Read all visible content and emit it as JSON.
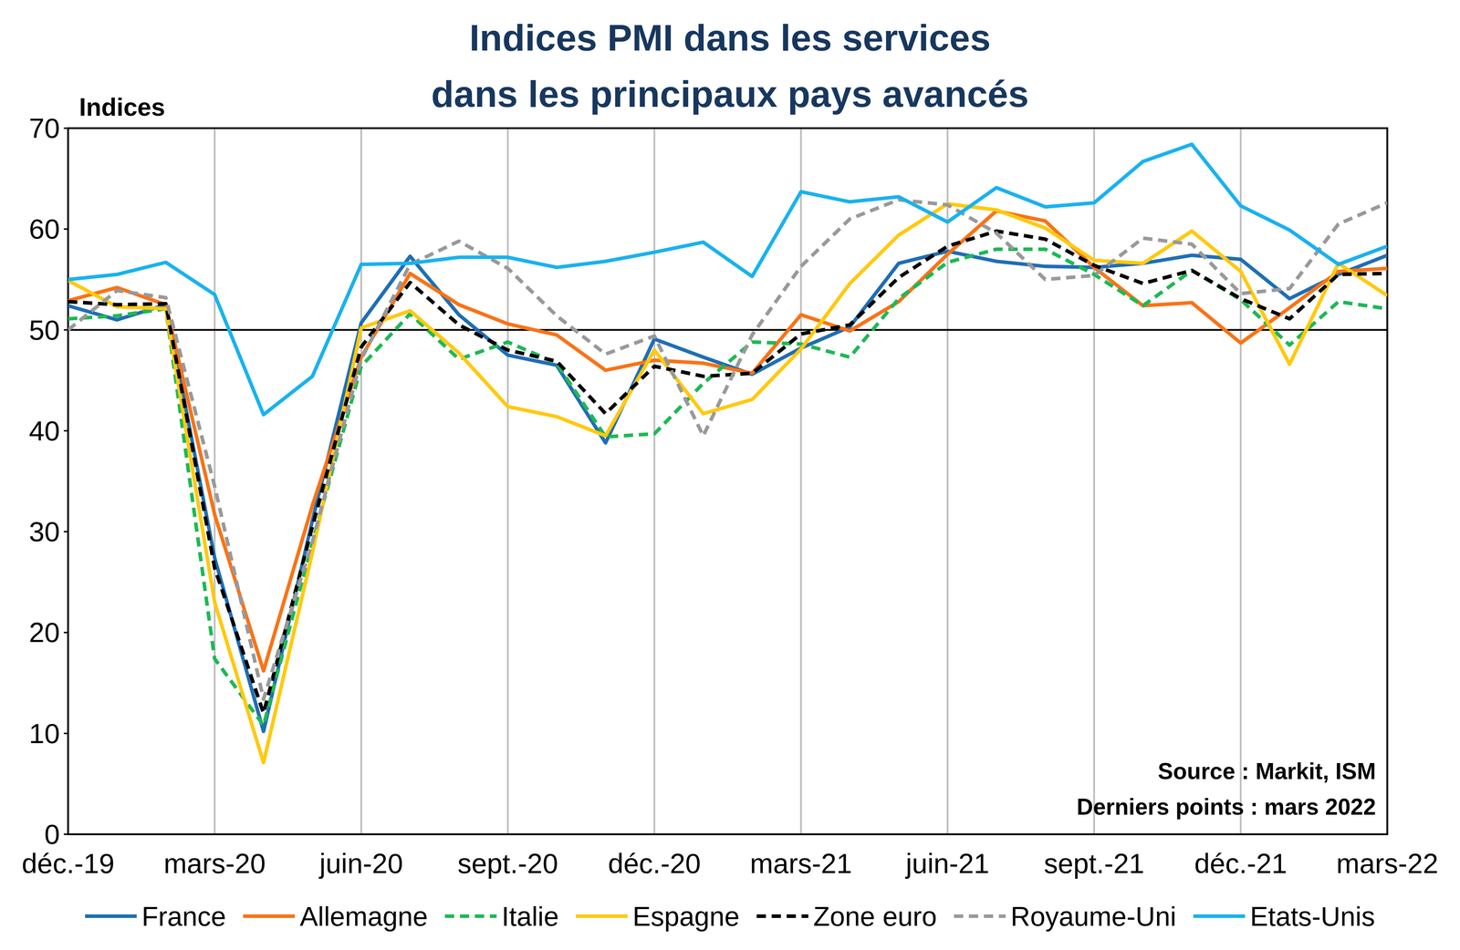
{
  "chart_data": {
    "type": "line",
    "title": "Indices PMI dans les services\ndans les principaux pays avancés",
    "y_label": "Indices",
    "annotations": [
      "Source : Markit, ISM",
      "Derniers points : mars 2022"
    ],
    "categories": [
      "déc.-19",
      null,
      null,
      "mars-20",
      null,
      null,
      "juin-20",
      null,
      null,
      "sept.-20",
      null,
      null,
      "déc.-20",
      null,
      null,
      "mars-21",
      null,
      null,
      "juin-21",
      null,
      null,
      "sept.-21",
      null,
      null,
      "déc.-21",
      null,
      null,
      "mars-22"
    ],
    "ylim": [
      0,
      70
    ],
    "yticks": [
      0,
      10,
      20,
      30,
      40,
      50,
      60,
      70
    ],
    "hline": 50,
    "grid": "x",
    "legend": "bottom",
    "series": [
      {
        "name": "France",
        "color": "#1F6EB5",
        "line_style": "solid",
        "values": [
          52.4,
          51.0,
          52.5,
          27.4,
          10.2,
          31.1,
          50.7,
          57.3,
          51.5,
          47.5,
          46.5,
          38.8,
          49.1,
          47.3,
          45.6,
          48.2,
          50.3,
          56.6,
          57.8,
          56.8,
          56.3,
          56.2,
          56.6,
          57.4,
          57.0,
          53.1,
          55.5,
          57.4
        ]
      },
      {
        "name": "Allemagne",
        "color": "#F97316",
        "line_style": "solid",
        "values": [
          52.9,
          54.2,
          52.5,
          31.7,
          16.2,
          32.6,
          47.3,
          55.6,
          52.5,
          50.6,
          49.5,
          46.0,
          47.0,
          46.7,
          45.7,
          51.5,
          49.9,
          52.8,
          57.5,
          61.8,
          60.8,
          56.2,
          52.4,
          52.7,
          48.7,
          52.2,
          55.8,
          56.1
        ]
      },
      {
        "name": "Italie",
        "color": "#1DB954",
        "line_style": "dashed",
        "values": [
          51.1,
          51.4,
          52.1,
          17.4,
          10.8,
          28.9,
          46.4,
          51.6,
          47.1,
          48.8,
          46.7,
          39.4,
          39.7,
          44.7,
          48.8,
          48.6,
          47.3,
          53.1,
          56.7,
          58.0,
          58.0,
          55.5,
          52.4,
          55.9,
          53.0,
          48.5,
          52.8,
          52.1
        ]
      },
      {
        "name": "Espagne",
        "color": "#FFC90E",
        "line_style": "solid",
        "values": [
          54.9,
          52.3,
          52.1,
          23.0,
          7.1,
          27.9,
          50.2,
          51.9,
          47.7,
          42.4,
          41.4,
          39.5,
          48.0,
          41.7,
          43.1,
          48.1,
          54.6,
          59.4,
          62.5,
          61.9,
          60.1,
          56.9,
          56.6,
          59.8,
          55.8,
          46.6,
          56.6,
          53.4
        ]
      },
      {
        "name": "Zone euro",
        "color": "#000000",
        "line_style": "dashed",
        "values": [
          52.8,
          52.5,
          52.6,
          26.4,
          12.0,
          30.5,
          48.3,
          54.7,
          50.5,
          48.0,
          46.9,
          41.7,
          46.4,
          45.4,
          45.7,
          49.6,
          50.5,
          55.2,
          58.3,
          59.8,
          59.0,
          56.4,
          54.6,
          55.9,
          53.1,
          51.1,
          55.5,
          55.6
        ]
      },
      {
        "name": "Royaume-Uni",
        "color": "#999999",
        "line_style": "dashed",
        "values": [
          50.0,
          53.9,
          53.2,
          34.5,
          13.4,
          29.0,
          47.1,
          56.5,
          58.8,
          56.1,
          51.4,
          47.6,
          49.4,
          39.5,
          49.5,
          56.3,
          61.0,
          62.9,
          62.4,
          59.6,
          55.0,
          55.4,
          59.1,
          58.5,
          53.6,
          54.1,
          60.5,
          62.6
        ]
      },
      {
        "name": "Etats-Unis",
        "color": "#19B2EE",
        "line_style": "solid",
        "values": [
          55.0,
          55.5,
          56.7,
          53.5,
          41.6,
          45.4,
          56.5,
          56.6,
          57.2,
          57.2,
          56.2,
          56.8,
          57.7,
          58.7,
          55.3,
          63.7,
          62.7,
          63.2,
          60.7,
          64.1,
          62.2,
          62.6,
          66.7,
          68.4,
          62.3,
          59.9,
          56.5,
          58.3
        ]
      }
    ]
  }
}
